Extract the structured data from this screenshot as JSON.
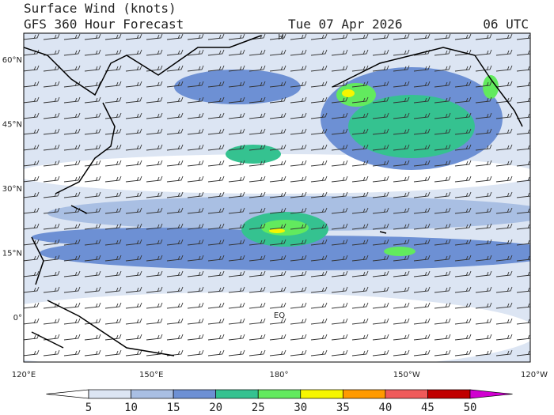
{
  "header": {
    "title": "Surface Wind (knots)",
    "subtitle": "GFS 360 Hour Forecast",
    "date": "Tue 07 Apr 2026",
    "time": "06 UTC"
  },
  "map": {
    "lat_labels": [
      "60°N",
      "45°N",
      "30°N",
      "15°N",
      "0°"
    ],
    "lon_labels": [
      "120°E",
      "150°E",
      "180°",
      "150°W",
      "120°W"
    ],
    "annotations": [
      "H",
      "EQ"
    ]
  },
  "colorbar": {
    "ticks": [
      5,
      10,
      15,
      20,
      25,
      30,
      35,
      40,
      45,
      50
    ],
    "colors": [
      "#ffffff",
      "#dce5f3",
      "#a9bfe3",
      "#6d90d4",
      "#35c290",
      "#62ea5e",
      "#f6f600",
      "#ff9a00",
      "#ef5a5a",
      "#c00000",
      "#d000d0"
    ]
  }
}
